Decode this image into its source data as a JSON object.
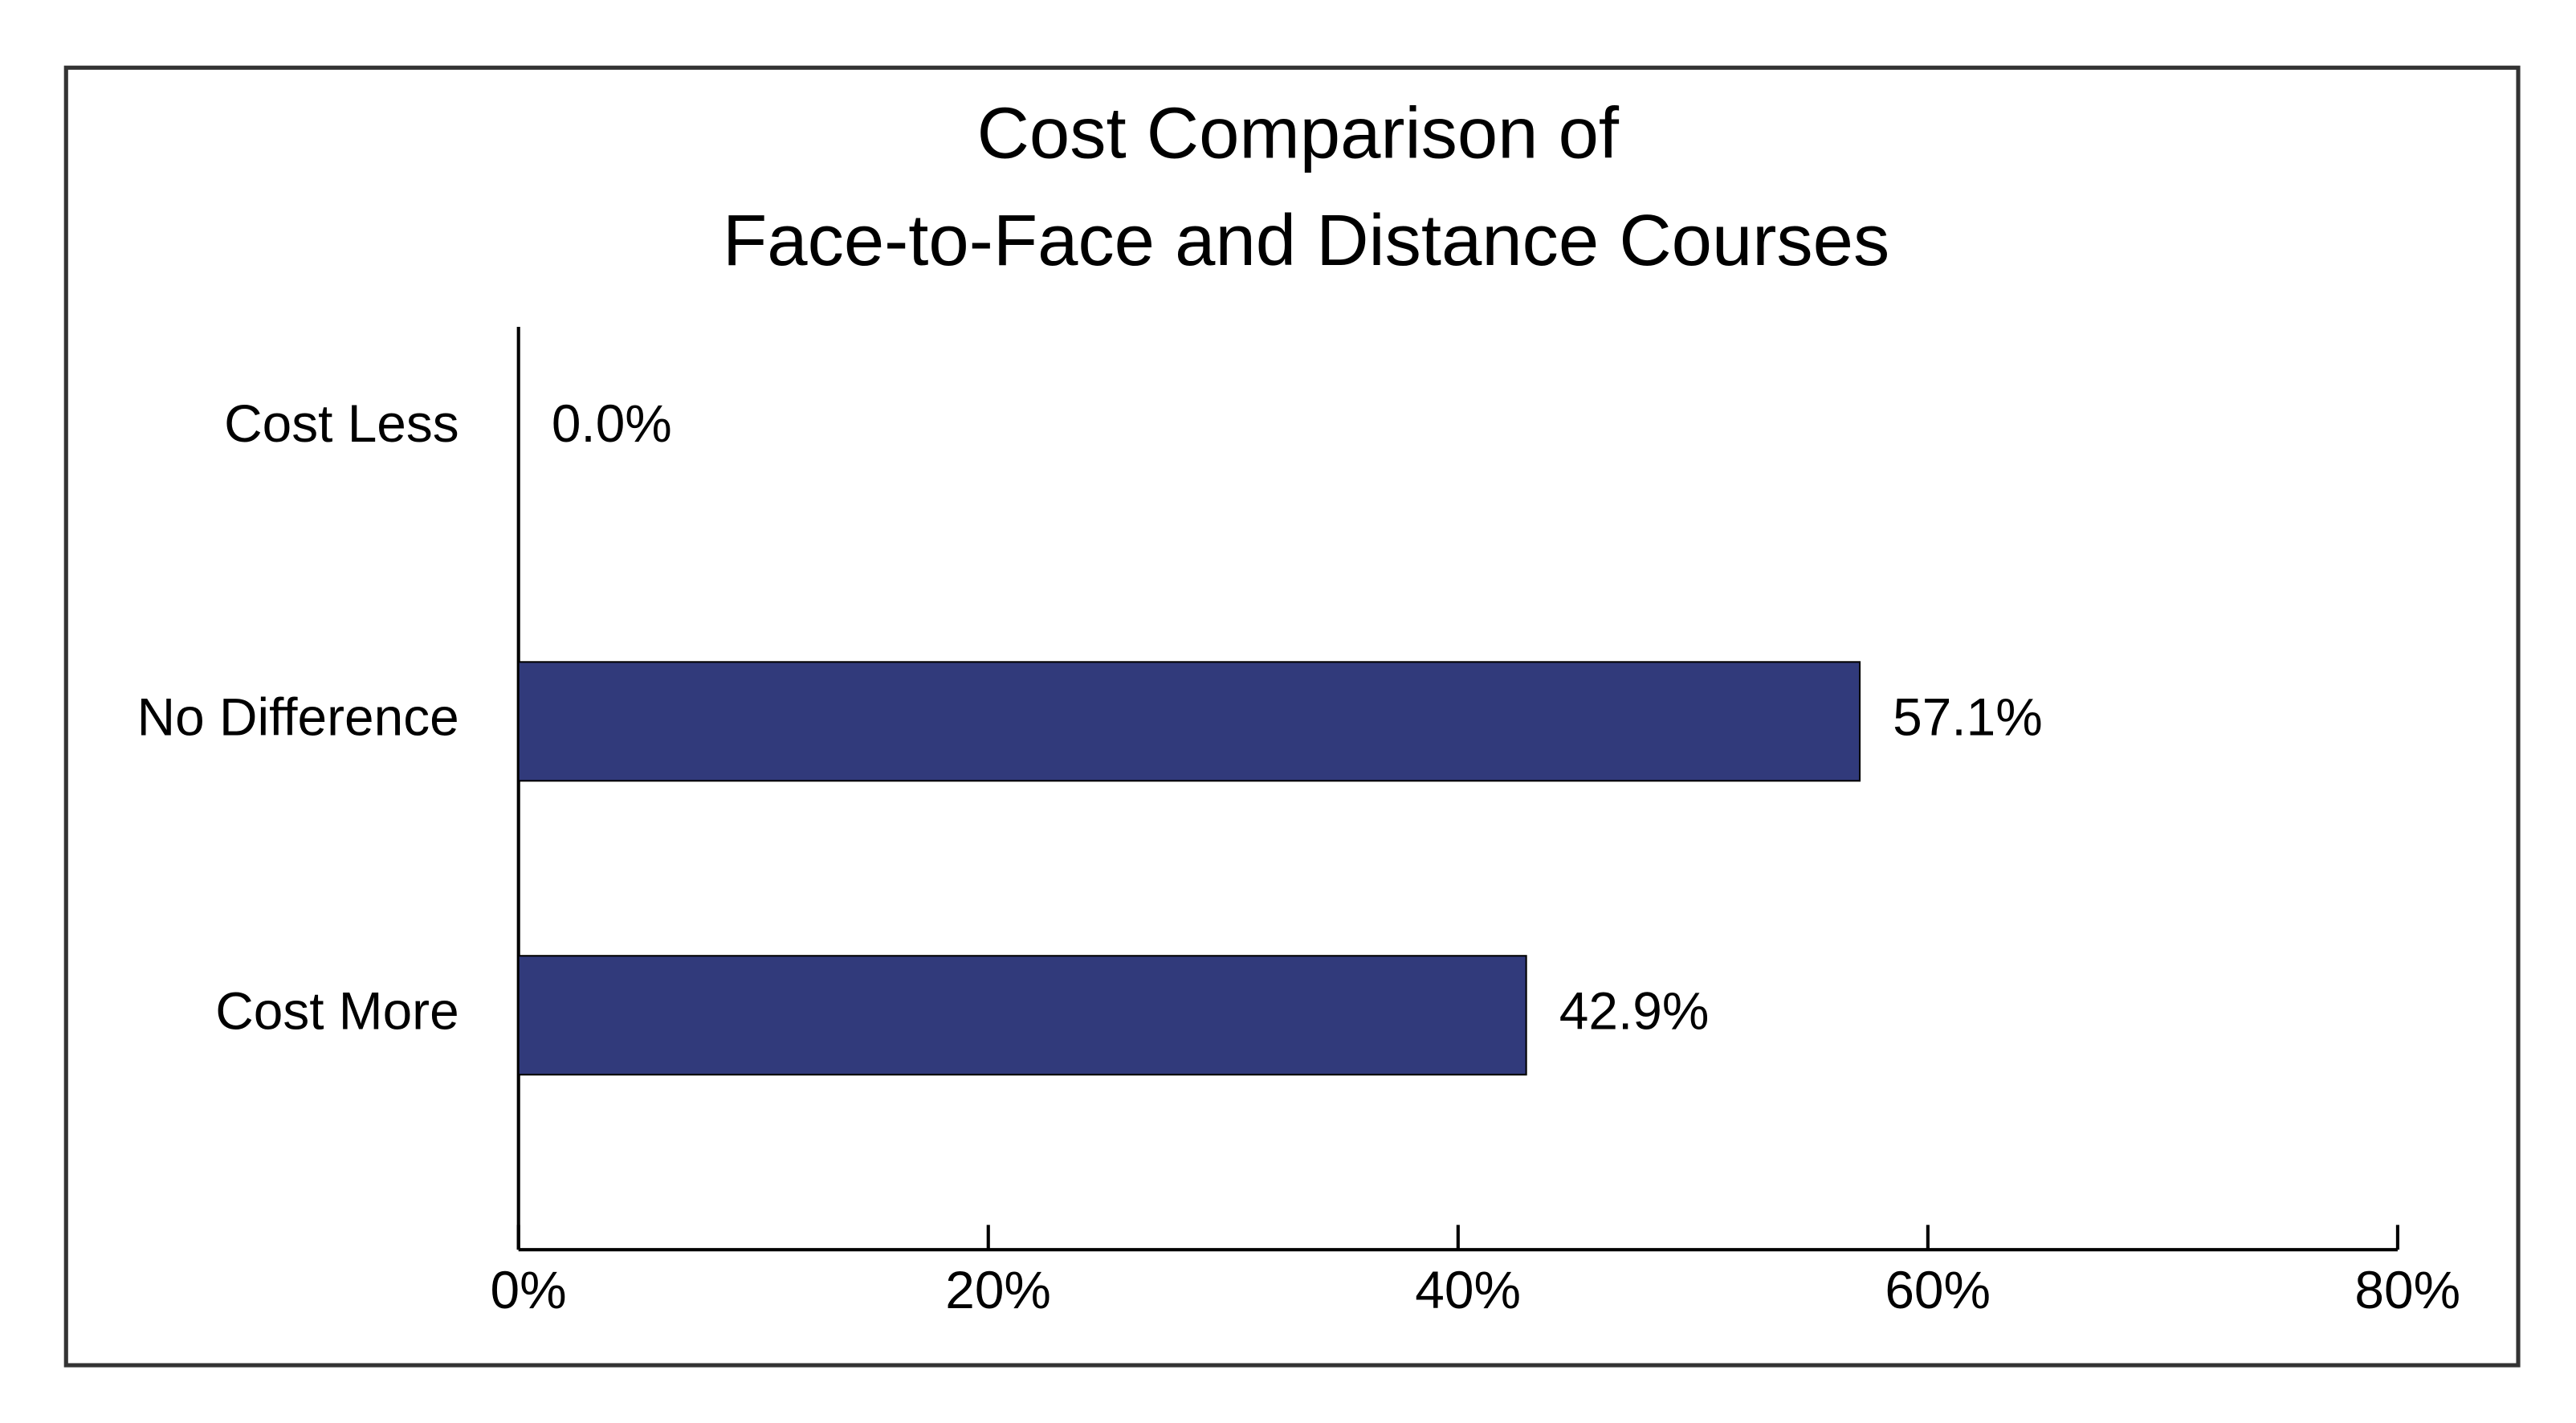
{
  "chart_data": {
    "type": "bar",
    "orientation": "horizontal",
    "title": [
      "Cost Comparison of",
      "Face-to-Face and Distance Courses"
    ],
    "categories": [
      "Cost Less",
      "No Difference",
      "Cost More"
    ],
    "values": [
      0,
      57.1,
      42.9
    ],
    "value_labels": [
      "0.0%",
      "57.1%",
      "42.9%"
    ],
    "color": "#313a7b",
    "xlim": [
      0,
      80
    ],
    "xticks": [
      {
        "value": 0,
        "label": "0%"
      },
      {
        "value": 20,
        "label": "20%"
      },
      {
        "value": 40,
        "label": "40%"
      },
      {
        "value": 60,
        "label": "60%"
      },
      {
        "value": 80,
        "label": "80%"
      }
    ],
    "grid": false
  }
}
